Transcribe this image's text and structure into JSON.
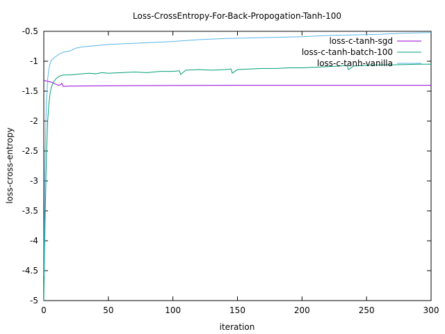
{
  "chart_data": {
    "type": "line",
    "title": "Loss-CrossEntropy-For-Back-Propogation-Tanh-100",
    "xlabel": "iteration",
    "ylabel": "loss-cross-entropy",
    "xlim": [
      0,
      300
    ],
    "ylim": [
      -5,
      -0.5
    ],
    "xticks": [
      0,
      50,
      100,
      150,
      200,
      250,
      300
    ],
    "xtick_labels": [
      "0",
      "50",
      "100",
      "150",
      "200",
      "250",
      "300"
    ],
    "yticks": [
      -5,
      -4.5,
      -4,
      -3.5,
      -3,
      -2.5,
      -2,
      -1.5,
      -1,
      -0.5
    ],
    "ytick_labels": [
      "-5",
      "-4.5",
      "-4",
      "-3.5",
      "-3",
      "-2.5",
      "-2",
      "-1.5",
      "-1",
      "-0.5"
    ],
    "grid": false,
    "legend_position": "top-right",
    "series": [
      {
        "name": "loss-c-tanh-sgd",
        "color": "#9400d3",
        "x": [
          0,
          2,
          4,
          6,
          8,
          10,
          11,
          12,
          13,
          14,
          15,
          20,
          50,
          100,
          150,
          200,
          250,
          300
        ],
        "y": [
          -1.32,
          -1.33,
          -1.34,
          -1.35,
          -1.37,
          -1.39,
          -1.4,
          -1.4,
          -1.39,
          -1.37,
          -1.42,
          -1.415,
          -1.41,
          -1.405,
          -1.403,
          -1.402,
          -1.402,
          -1.402
        ]
      },
      {
        "name": "loss-c-tanh-batch-100",
        "color": "#009e73",
        "x": [
          0,
          1,
          2,
          3,
          4,
          5,
          6,
          7,
          8,
          10,
          12,
          15,
          20,
          25,
          30,
          35,
          40,
          45,
          50,
          60,
          70,
          80,
          90,
          100,
          105,
          106,
          110,
          120,
          130,
          140,
          145,
          146,
          150,
          160,
          170,
          180,
          190,
          200,
          210,
          220,
          230,
          235,
          236,
          240,
          250,
          260,
          270,
          280,
          290,
          300
        ],
        "y": [
          -5.0,
          -3.7,
          -2.6,
          -2.0,
          -1.7,
          -1.52,
          -1.42,
          -1.37,
          -1.33,
          -1.28,
          -1.25,
          -1.23,
          -1.23,
          -1.22,
          -1.21,
          -1.2,
          -1.21,
          -1.19,
          -1.2,
          -1.19,
          -1.18,
          -1.19,
          -1.17,
          -1.17,
          -1.16,
          -1.22,
          -1.15,
          -1.14,
          -1.15,
          -1.14,
          -1.13,
          -1.2,
          -1.14,
          -1.13,
          -1.12,
          -1.12,
          -1.11,
          -1.11,
          -1.1,
          -1.09,
          -1.08,
          -1.07,
          -1.14,
          -1.08,
          -1.07,
          -1.06,
          -1.06,
          -1.055,
          -1.05,
          -1.05
        ]
      },
      {
        "name": "loss-c-tanh-vanilla",
        "color": "#56b4e9",
        "x": [
          0,
          1,
          2,
          3,
          4,
          5,
          6,
          8,
          10,
          12,
          15,
          20,
          25,
          30,
          40,
          50,
          60,
          70,
          80,
          90,
          100,
          120,
          140,
          160,
          180,
          200,
          220,
          240,
          260,
          280,
          300
        ],
        "y": [
          -4.6,
          -2.6,
          -1.7,
          -1.3,
          -1.12,
          -1.03,
          -0.98,
          -0.94,
          -0.91,
          -0.88,
          -0.85,
          -0.83,
          -0.78,
          -0.76,
          -0.74,
          -0.72,
          -0.71,
          -0.7,
          -0.69,
          -0.68,
          -0.67,
          -0.64,
          -0.62,
          -0.61,
          -0.6,
          -0.59,
          -0.57,
          -0.56,
          -0.55,
          -0.53,
          -0.52
        ]
      }
    ]
  }
}
